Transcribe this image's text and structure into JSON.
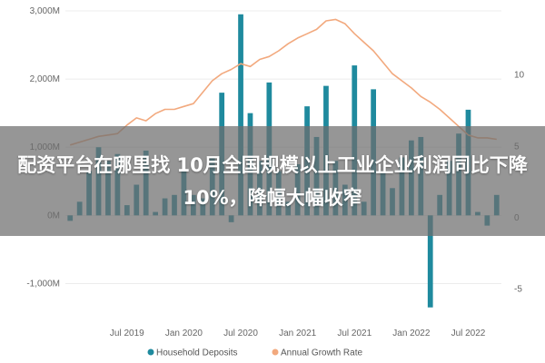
{
  "overlay": {
    "headline": "配资平台在哪里找 10月全国规模以上工业企业利润同比下降10%，降幅大幅收窄"
  },
  "chart_data": {
    "type": "bar+line",
    "categories": [
      "2019-01",
      "2019-02",
      "2019-03",
      "2019-04",
      "2019-05",
      "2019-06",
      "2019-07",
      "2019-08",
      "2019-09",
      "2019-10",
      "2019-11",
      "2019-12",
      "2020-01",
      "2020-02",
      "2020-03",
      "2020-04",
      "2020-05",
      "2020-06",
      "2020-07",
      "2020-08",
      "2020-09",
      "2020-10",
      "2020-11",
      "2020-12",
      "2021-01",
      "2021-02",
      "2021-03",
      "2021-04",
      "2021-05",
      "2021-06",
      "2021-07",
      "2021-08",
      "2021-09",
      "2021-10",
      "2021-11",
      "2021-12",
      "2022-01",
      "2022-02",
      "2022-03",
      "2022-04",
      "2022-05",
      "2022-06",
      "2022-07",
      "2022-08",
      "2022-09",
      "2022-10"
    ],
    "x_tick_labels": [
      "Jul 2019",
      "Jan 2020",
      "Jul 2020",
      "Jan 2021",
      "Jul 2021",
      "Jan 2022",
      "Jul 2022"
    ],
    "series": [
      {
        "name": "Household Deposits",
        "axis": "left",
        "color": "#1f8a9e",
        "values": [
          -80,
          200,
          650,
          1000,
          800,
          900,
          150,
          450,
          950,
          50,
          250,
          300,
          650,
          300,
          250,
          850,
          1800,
          -100,
          2950,
          1500,
          800,
          1950,
          650,
          200,
          750,
          1600,
          1150,
          1900,
          800,
          450,
          2200,
          200,
          1850,
          650,
          400,
          850,
          1100,
          1150,
          -1350,
          300,
          800,
          1200,
          1550,
          50,
          -150,
          300
        ]
      },
      {
        "name": "Annual Growth Rate",
        "axis": "right",
        "color": "#f2a97e",
        "values": [
          5.1,
          5.3,
          5.5,
          5.7,
          5.8,
          5.9,
          6.5,
          7.0,
          6.8,
          7.3,
          7.6,
          7.6,
          7.8,
          8.0,
          8.8,
          9.6,
          10.1,
          10.4,
          10.8,
          10.6,
          11.1,
          11.3,
          11.7,
          12.2,
          12.6,
          12.9,
          13.2,
          13.8,
          13.9,
          13.6,
          12.9,
          12.3,
          11.7,
          10.9,
          10.1,
          9.6,
          9.1,
          8.5,
          8.1,
          7.6,
          7.0,
          6.4,
          5.8,
          5.6,
          5.6,
          5.5
        ]
      }
    ],
    "y_left": {
      "ylim": [
        -1500,
        3000
      ],
      "tick_labels": [
        "3,000M",
        "2,000M",
        "1,000M",
        "0M",
        "-1,000M"
      ]
    },
    "y_right": {
      "ylim": [
        -7,
        14.5
      ],
      "tick_labels": [
        "10",
        "5",
        "0",
        "-5"
      ]
    },
    "title": "",
    "xlabel": "",
    "ylabel": "",
    "legend": {
      "placement": "bottom",
      "entries": [
        "Household Deposits",
        "Annual Growth Rate"
      ]
    },
    "grid": "horizontal"
  }
}
